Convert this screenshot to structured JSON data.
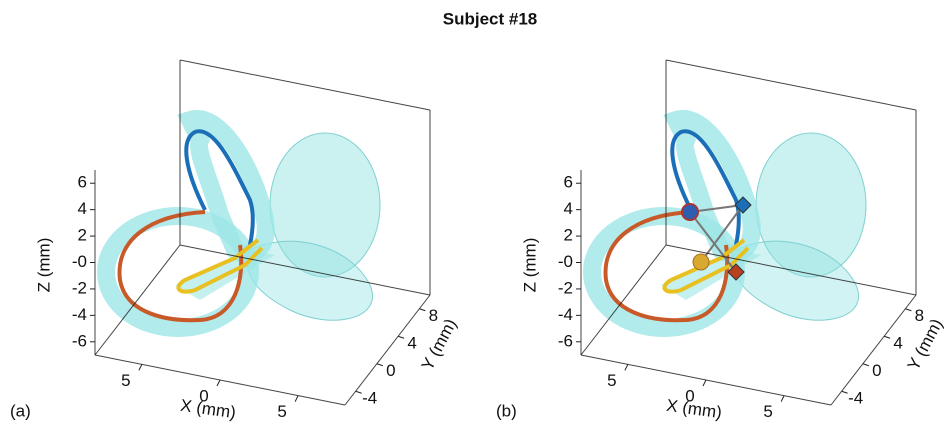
{
  "title": "Subject #18",
  "chart_data": [
    {
      "type": "box3d",
      "panel_label": "(a)",
      "xlabel": "X (mm)",
      "ylabel": "Y (mm)",
      "zlabel": "Z (mm)",
      "xlim": [
        8,
        -8
      ],
      "ylim": [
        -6,
        10
      ],
      "zlim": [
        -7,
        7
      ],
      "xticks": [
        5,
        0,
        {
          "value": -5,
          "label": "5"
        }
      ],
      "yticks": [
        8,
        4,
        0,
        -4
      ],
      "zticks": [
        6,
        4,
        2,
        {
          "value": 0,
          "label": "-0"
        },
        -2,
        -4,
        -6
      ]
    },
    {
      "type": "box3d",
      "panel_label": "(b)",
      "xlabel": "X (mm)",
      "ylabel": "Y (mm)",
      "zlabel": "Z (mm)",
      "xlim": [
        8,
        -8
      ],
      "ylim": [
        -6,
        10
      ],
      "zlim": [
        -7,
        7
      ],
      "xticks": [
        5,
        0,
        {
          "value": -5,
          "label": "5"
        }
      ],
      "yticks": [
        8,
        4,
        0,
        -4
      ],
      "zticks": [
        6,
        4,
        2,
        {
          "value": 0,
          "label": "-0"
        },
        -2,
        -4,
        -6
      ]
    }
  ]
}
